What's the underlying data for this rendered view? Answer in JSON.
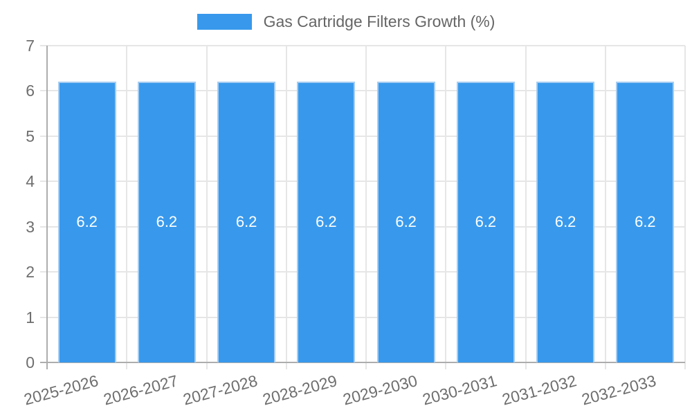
{
  "chart_data": {
    "type": "bar",
    "title": "Gas Cartridge Filters Growth (%)",
    "categories": [
      "2025-2026",
      "2026-2027",
      "2027-2028",
      "2028-2029",
      "2029-2030",
      "2030-2031",
      "2031-2032",
      "2032-2033"
    ],
    "series": [
      {
        "name": "Gas Cartridge Filters Growth (%)",
        "values": [
          6.2,
          6.2,
          6.2,
          6.2,
          6.2,
          6.2,
          6.2,
          6.2
        ],
        "bar_labels": [
          "6.2",
          "6.2",
          "6.2",
          "6.2",
          "6.2",
          "6.2",
          "6.2",
          "6.2"
        ]
      }
    ],
    "xlabel": "",
    "ylabel": "",
    "ylim": [
      0,
      7
    ],
    "y_ticks": [
      "0",
      "1",
      "2",
      "3",
      "4",
      "5",
      "6",
      "7"
    ],
    "grid": true,
    "legend_position": "top-center",
    "x_label_rotation_deg": -15,
    "colors": {
      "bar_fill": "#3899ec",
      "bar_border": "#a6cdf2",
      "grid_line": "#e6e6e6",
      "axis_line": "#adadad",
      "tick_text": "#6e6e6e",
      "legend_text": "#666666",
      "bar_label_text": "#ffffff",
      "background": "#ffffff"
    }
  }
}
